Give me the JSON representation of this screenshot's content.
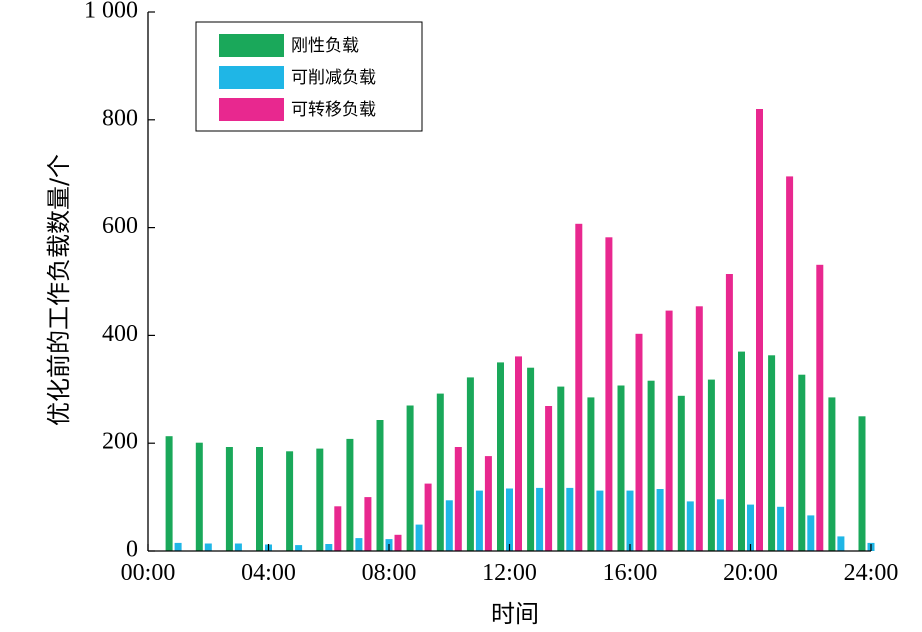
{
  "chart_data": {
    "type": "bar",
    "xlabel": "时间",
    "ylabel": "优化前的工作负载数量/个",
    "ylim": [
      0,
      1000
    ],
    "yticks": [
      0,
      200,
      400,
      600,
      800,
      1000
    ],
    "ytick_labels": [
      "0",
      "200",
      "400",
      "600",
      "800",
      "1 000"
    ],
    "xlim": [
      0,
      24
    ],
    "xticks": [
      0,
      4,
      8,
      12,
      16,
      20,
      24
    ],
    "xtick_labels": [
      "00:00",
      "04:00",
      "08:00",
      "12:00",
      "16:00",
      "20:00",
      "24:00"
    ],
    "hours": [
      1,
      2,
      3,
      4,
      5,
      6,
      7,
      8,
      9,
      10,
      11,
      12,
      13,
      14,
      15,
      16,
      17,
      18,
      19,
      20,
      21,
      22,
      23,
      24
    ],
    "legend_position": "top-left",
    "series": [
      {
        "name": "刚性负载",
        "color": "#1aa85a",
        "values": [
          213,
          201,
          193,
          193,
          185,
          190,
          208,
          243,
          270,
          292,
          322,
          350,
          340,
          305,
          285,
          307,
          316,
          288,
          318,
          370,
          363,
          327,
          285,
          250
        ]
      },
      {
        "name": "可削减负载",
        "color": "#1fb6e6",
        "values": [
          15,
          14,
          14,
          12,
          11,
          13,
          24,
          22,
          49,
          94,
          112,
          116,
          117,
          117,
          112,
          112,
          115,
          92,
          96,
          86,
          82,
          66,
          27,
          15
        ]
      },
      {
        "name": "可转移负载",
        "color": "#e8288f",
        "values": [
          0,
          0,
          0,
          0,
          0,
          83,
          100,
          30,
          125,
          193,
          176,
          361,
          269,
          607,
          582,
          403,
          446,
          454,
          514,
          820,
          695,
          531,
          0,
          0
        ]
      }
    ]
  }
}
